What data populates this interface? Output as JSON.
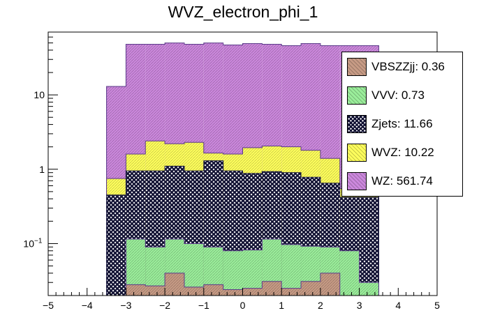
{
  "chart_data": {
    "type": "bar",
    "stacked": true,
    "title": "WVZ_electron_phi_1",
    "xlabel": "",
    "ylabel": "",
    "xlim": [
      -5,
      5
    ],
    "ylim": [
      0.02,
      70
    ],
    "yscale": "log",
    "x_ticks": [
      "−5",
      "−4",
      "−3",
      "−2",
      "−1",
      "0",
      "1",
      "2",
      "3",
      "4",
      "5"
    ],
    "y_ticks": [
      {
        "value": 0.1,
        "base": "10",
        "exp": "−1"
      },
      {
        "value": 1,
        "label": "1"
      },
      {
        "value": 10,
        "label": "10"
      }
    ],
    "bin_edges": [
      -3.5,
      -3.0,
      -2.5,
      -2.0,
      -1.5,
      -1.0,
      -0.5,
      0.0,
      0.5,
      1.0,
      1.5,
      2.0,
      2.5,
      3.0,
      3.5
    ],
    "series": [
      {
        "name": "VBSZZjj",
        "legend": "VBSZZjj: 0.36",
        "color": "#c79b85",
        "stack_top": [
          0.02,
          0.028,
          0.027,
          0.04,
          0.026,
          0.028,
          0.024,
          0.025,
          0.031,
          0.025,
          0.031,
          0.04,
          0.02,
          0.02
        ]
      },
      {
        "name": "VVV",
        "legend": "VVV: 0.73",
        "color": "#9bee9b",
        "stack_top": [
          0.02,
          0.115,
          0.09,
          0.115,
          0.1,
          0.09,
          0.08,
          0.082,
          0.115,
          0.097,
          0.092,
          0.09,
          0.08,
          0.03
        ]
      },
      {
        "name": "Zjets",
        "legend": "Zjets: 11.66",
        "color": "#1a1a40",
        "stack_top": [
          0.45,
          0.95,
          0.95,
          1.1,
          0.95,
          1.3,
          0.95,
          0.88,
          0.93,
          0.9,
          0.78,
          0.65,
          0.42,
          0.42
        ]
      },
      {
        "name": "WVZ",
        "legend": "WVZ: 10.22",
        "color": "#ffff5c",
        "stack_top": [
          0.75,
          1.6,
          2.4,
          2.2,
          2.3,
          1.65,
          1.6,
          1.95,
          2.05,
          2.0,
          1.8,
          1.4,
          0.55,
          0.55
        ]
      },
      {
        "name": "WZ",
        "legend": "WZ: 561.74",
        "color": "#cc88dd",
        "stack_top": [
          13,
          48,
          48,
          50,
          48,
          50,
          47,
          49,
          48,
          46,
          49,
          46,
          46,
          46
        ]
      }
    ]
  }
}
